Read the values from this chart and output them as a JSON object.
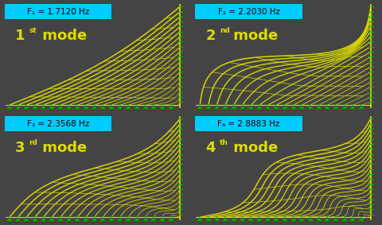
{
  "modes": [
    {
      "freq": "F₁ = 1.7120 Hz",
      "label": "1",
      "sup": "st",
      "suffix": " mode",
      "mode_num": 1
    },
    {
      "freq": "F₂ = 2.2030 Hz",
      "label": "2",
      "sup": "nd",
      "suffix": " mode",
      "mode_num": 2
    },
    {
      "freq": "F₃ = 2.3568 Hz",
      "label": "3",
      "sup": "rd",
      "suffix": " mode",
      "mode_num": 3
    },
    {
      "freq": "F₄ = 2.8883 Hz",
      "label": "4",
      "sup": "th",
      "suffix": " mode",
      "mode_num": 4
    }
  ],
  "bg_color": "#000000",
  "cable_color": "#dddd00",
  "anchor_color": "#00bb00",
  "label_color": "#dddd00",
  "freq_bg": "#00ccff",
  "fig_bg": "#444444",
  "n_cables": 20,
  "n_crossties": 9,
  "amplitude": 0.07
}
